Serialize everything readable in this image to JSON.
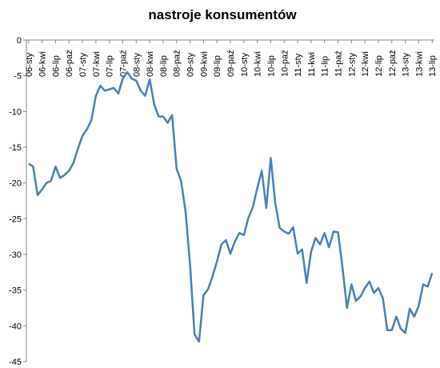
{
  "chart_data": {
    "type": "line",
    "title": "nastroje konsumentów",
    "categories": [
      "06-sty",
      null,
      null,
      "06-kwi",
      null,
      null,
      "06-lip",
      null,
      null,
      "06-paź",
      null,
      null,
      "07-sty",
      null,
      null,
      "07-kwi",
      null,
      null,
      "07-lip",
      null,
      null,
      "07-paź",
      null,
      null,
      "08-sty",
      null,
      null,
      "08-kwi",
      null,
      null,
      "08-lip",
      null,
      null,
      "08-paź",
      null,
      null,
      "09-sty",
      null,
      null,
      "09-kwi",
      null,
      null,
      "09-lip",
      null,
      null,
      "09-paź",
      null,
      null,
      "10-sty",
      null,
      null,
      "10-kwi",
      null,
      null,
      "10-lip",
      null,
      null,
      "10-paź",
      null,
      null,
      "11-sty",
      null,
      null,
      "11-kwi",
      null,
      null,
      "11-lip",
      null,
      null,
      "11-paź",
      null,
      null,
      "12-sty",
      null,
      null,
      "12-kwi",
      null,
      null,
      "12-lip",
      null,
      null,
      "12-paź",
      null,
      null,
      "13-sty",
      null,
      null,
      "13-kwi",
      null,
      null,
      "13-lip"
    ],
    "values": [
      -17.3,
      -17.7,
      -21.7,
      -20.9,
      -20,
      -19.7,
      -17.7,
      -19.3,
      -18.9,
      -18.3,
      -17.2,
      -15.2,
      -13.4,
      -12.5,
      -11.2,
      -7.8,
      -6.4,
      -7.1,
      -6.9,
      -6.7,
      -7.5,
      -5.4,
      -4.5,
      -5.4,
      -5.7,
      -7.1,
      -7.8,
      -5.5,
      -9,
      -10.7,
      -10.7,
      -11.6,
      -10.5,
      -18,
      -19.7,
      -24,
      -31.4,
      -41.2,
      -42.2,
      -35.7,
      -34.9,
      -33.1,
      -31,
      -28.6,
      -28,
      -29.9,
      -28.2,
      -27,
      -27.3,
      -24.9,
      -23.4,
      -20.7,
      -18.3,
      -23.5,
      -16.5,
      -22.8,
      -26.3,
      -26.8,
      -27.1,
      -26.2,
      -29.9,
      -29.3,
      -34,
      -29.6,
      -27.7,
      -28.6,
      -27,
      -29,
      -26.8,
      -26.9,
      -31.8,
      -37.5,
      -34.2,
      -36.5,
      -35.9,
      -34.7,
      -33.8,
      -35.4,
      -34.7,
      -36.1,
      -40.6,
      -40.6,
      -38.7,
      -40.4,
      -41,
      -37.6,
      -38.7,
      -37.2,
      -34.2,
      -34.5,
      -32.6
    ],
    "color": "#4a7ebb",
    "ylim": [
      -45,
      0
    ],
    "yticks": [
      0,
      -5,
      -10,
      -15,
      -20,
      -25,
      -30,
      -35,
      -40,
      -45
    ],
    "grid": false
  }
}
